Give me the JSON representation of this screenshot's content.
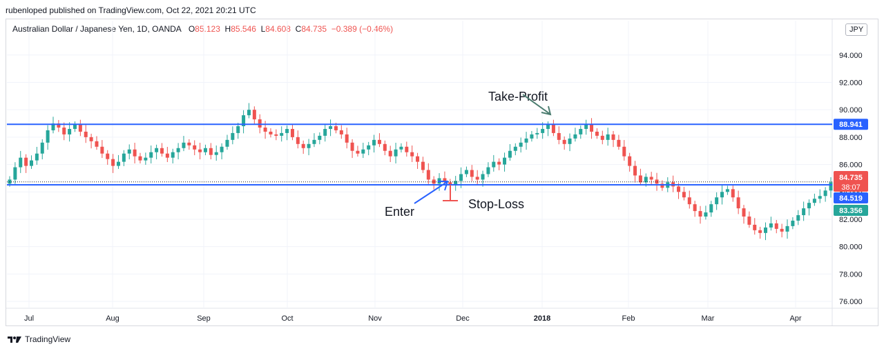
{
  "header": {
    "published": "rubenloped published on TradingView.com, Oct 22, 2021 20:21 UTC"
  },
  "legend": {
    "symbol": "Australian Dollar / Japanese Yen, 1D, OANDA",
    "o_label": "O",
    "o": "85.123",
    "h_label": "H",
    "h": "85.546",
    "l_label": "L",
    "l": "84.608",
    "c_label": "C",
    "c": "84.735",
    "change": "−0.389 (−0.46%)"
  },
  "currency_button": "JPY",
  "footer": {
    "brand": "TradingView"
  },
  "colors": {
    "up": "#26a69a",
    "down": "#ef5350",
    "line": "#2962ff",
    "entry_arrow": "#2962ff",
    "tp_arrow": "#4a7c6f",
    "sl_marker": "#ef5350"
  },
  "chart_data": {
    "type": "candlestick",
    "x_ticks": [
      "Jul",
      "Aug",
      "Sep",
      "Oct",
      "Nov",
      "Dec",
      "2018",
      "Feb",
      "Mar",
      "Apr"
    ],
    "y_ticks": [
      "94.000",
      "92.000",
      "90.000",
      "88.000",
      "86.000",
      "84.000",
      "82.000",
      "80.000",
      "78.000",
      "76.000"
    ],
    "ylim": [
      75.5,
      95.4
    ],
    "price_labels": {
      "resistance": "88.941",
      "last": "84.735",
      "countdown": "38:07",
      "support": "84.519",
      "other": "83.356"
    },
    "lines": {
      "resistance": 88.941,
      "support": 84.519,
      "last": 84.735
    },
    "annotations": {
      "take_profit": "Take-Profit",
      "enter": "Enter",
      "stop_loss": "Stop-Loss"
    },
    "close_path": [
      84.9,
      85.8,
      86.5,
      85.9,
      86.3,
      86.8,
      87.6,
      88.5,
      89.0,
      88.7,
      88.2,
      88.6,
      88.9,
      88.4,
      88.0,
      87.7,
      87.3,
      86.8,
      86.4,
      85.9,
      86.2,
      86.8,
      87.1,
      86.6,
      86.3,
      86.5,
      86.9,
      87.2,
      86.8,
      86.5,
      86.9,
      87.2,
      87.6,
      87.4,
      87.1,
      86.9,
      87.2,
      86.7,
      86.9,
      87.3,
      87.8,
      88.3,
      88.8,
      89.6,
      90.0,
      89.3,
      88.7,
      88.4,
      88.2,
      88.1,
      88.3,
      88.6,
      88.0,
      87.5,
      87.2,
      87.5,
      87.8,
      88.1,
      88.6,
      88.8,
      88.5,
      88.2,
      87.6,
      87.0,
      86.8,
      87.1,
      87.4,
      87.8,
      87.5,
      87.0,
      86.6,
      87.1,
      87.3,
      86.9,
      86.6,
      86.2,
      85.6,
      84.9,
      84.6,
      85.0,
      84.7,
      84.5,
      84.8,
      85.3,
      85.6,
      85.1,
      84.9,
      85.3,
      85.8,
      86.2,
      86.0,
      86.5,
      87.0,
      87.3,
      87.6,
      87.9,
      88.2,
      88.3,
      88.6,
      88.9,
      88.3,
      87.8,
      87.5,
      87.9,
      88.2,
      88.6,
      88.9,
      88.4,
      88.1,
      87.8,
      88.2,
      87.8,
      87.3,
      86.6,
      85.9,
      85.2,
      84.7,
      85.1,
      84.9,
      84.6,
      84.3,
      84.7,
      84.4,
      84.0,
      83.6,
      83.1,
      82.6,
      82.2,
      82.5,
      83.1,
      83.6,
      84.0,
      84.2,
      83.6,
      82.8,
      82.2,
      81.6,
      81.2,
      81.0,
      81.4,
      81.7,
      81.3,
      81.1,
      81.5,
      81.9,
      82.3,
      82.8,
      83.2,
      83.5,
      83.7,
      84.1,
      84.7
    ]
  }
}
